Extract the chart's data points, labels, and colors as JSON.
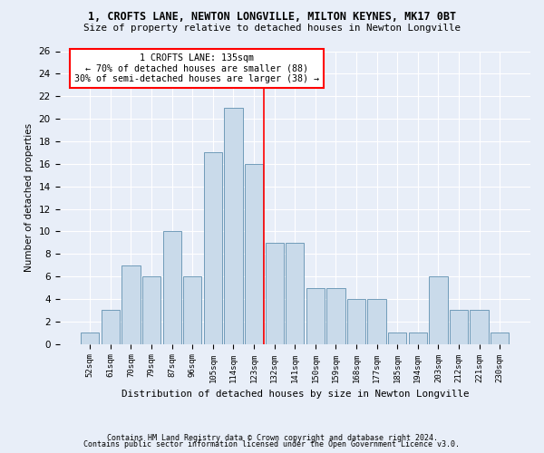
{
  "title1": "1, CROFTS LANE, NEWTON LONGVILLE, MILTON KEYNES, MK17 0BT",
  "title2": "Size of property relative to detached houses in Newton Longville",
  "xlabel": "Distribution of detached houses by size in Newton Longville",
  "ylabel": "Number of detached properties",
  "categories": [
    "52sqm",
    "61sqm",
    "70sqm",
    "79sqm",
    "87sqm",
    "96sqm",
    "105sqm",
    "114sqm",
    "123sqm",
    "132sqm",
    "141sqm",
    "150sqm",
    "159sqm",
    "168sqm",
    "177sqm",
    "185sqm",
    "194sqm",
    "203sqm",
    "212sqm",
    "221sqm",
    "230sqm"
  ],
  "values": [
    1,
    3,
    7,
    6,
    10,
    6,
    17,
    21,
    16,
    9,
    9,
    5,
    5,
    4,
    4,
    1,
    1,
    6,
    3,
    3,
    1
  ],
  "bar_color": "#c9daea",
  "bar_edge_color": "#6090b0",
  "red_line_index": 9,
  "annotation_title": "1 CROFTS LANE: 135sqm",
  "annotation_line1": "← 70% of detached houses are smaller (88)",
  "annotation_line2": "30% of semi-detached houses are larger (38) →",
  "ylim": [
    0,
    26
  ],
  "yticks": [
    0,
    2,
    4,
    6,
    8,
    10,
    12,
    14,
    16,
    18,
    20,
    22,
    24,
    26
  ],
  "footer1": "Contains HM Land Registry data © Crown copyright and database right 2024.",
  "footer2": "Contains public sector information licensed under the Open Government Licence v3.0.",
  "bg_color": "#e8eef8",
  "plot_bg_color": "#e8eef8"
}
